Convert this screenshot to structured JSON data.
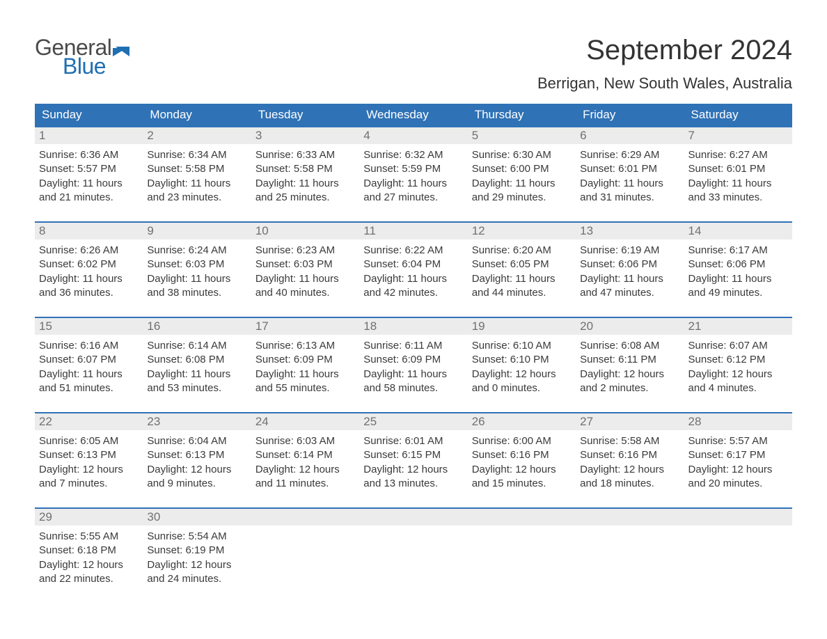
{
  "brand": {
    "line1": "General",
    "line2": "Blue",
    "logo_color": "#1f6fb2",
    "text_color": "#4a4a4a"
  },
  "title": "September 2024",
  "location": "Berrigan, New South Wales, Australia",
  "colors": {
    "header_bg": "#2f72b6",
    "header_text": "#ffffff",
    "week_border": "#2f72b6",
    "daynum_bg": "#ececec",
    "daynum_text": "#707070",
    "body_text": "#3a3a3a",
    "page_bg": "#ffffff"
  },
  "dow": [
    "Sunday",
    "Monday",
    "Tuesday",
    "Wednesday",
    "Thursday",
    "Friday",
    "Saturday"
  ],
  "weeks": [
    [
      {
        "n": "1",
        "sunrise": "6:36 AM",
        "sunset": "5:57 PM",
        "daylight": "11 hours and 21 minutes."
      },
      {
        "n": "2",
        "sunrise": "6:34 AM",
        "sunset": "5:58 PM",
        "daylight": "11 hours and 23 minutes."
      },
      {
        "n": "3",
        "sunrise": "6:33 AM",
        "sunset": "5:58 PM",
        "daylight": "11 hours and 25 minutes."
      },
      {
        "n": "4",
        "sunrise": "6:32 AM",
        "sunset": "5:59 PM",
        "daylight": "11 hours and 27 minutes."
      },
      {
        "n": "5",
        "sunrise": "6:30 AM",
        "sunset": "6:00 PM",
        "daylight": "11 hours and 29 minutes."
      },
      {
        "n": "6",
        "sunrise": "6:29 AM",
        "sunset": "6:01 PM",
        "daylight": "11 hours and 31 minutes."
      },
      {
        "n": "7",
        "sunrise": "6:27 AM",
        "sunset": "6:01 PM",
        "daylight": "11 hours and 33 minutes."
      }
    ],
    [
      {
        "n": "8",
        "sunrise": "6:26 AM",
        "sunset": "6:02 PM",
        "daylight": "11 hours and 36 minutes."
      },
      {
        "n": "9",
        "sunrise": "6:24 AM",
        "sunset": "6:03 PM",
        "daylight": "11 hours and 38 minutes."
      },
      {
        "n": "10",
        "sunrise": "6:23 AM",
        "sunset": "6:03 PM",
        "daylight": "11 hours and 40 minutes."
      },
      {
        "n": "11",
        "sunrise": "6:22 AM",
        "sunset": "6:04 PM",
        "daylight": "11 hours and 42 minutes."
      },
      {
        "n": "12",
        "sunrise": "6:20 AM",
        "sunset": "6:05 PM",
        "daylight": "11 hours and 44 minutes."
      },
      {
        "n": "13",
        "sunrise": "6:19 AM",
        "sunset": "6:06 PM",
        "daylight": "11 hours and 47 minutes."
      },
      {
        "n": "14",
        "sunrise": "6:17 AM",
        "sunset": "6:06 PM",
        "daylight": "11 hours and 49 minutes."
      }
    ],
    [
      {
        "n": "15",
        "sunrise": "6:16 AM",
        "sunset": "6:07 PM",
        "daylight": "11 hours and 51 minutes."
      },
      {
        "n": "16",
        "sunrise": "6:14 AM",
        "sunset": "6:08 PM",
        "daylight": "11 hours and 53 minutes."
      },
      {
        "n": "17",
        "sunrise": "6:13 AM",
        "sunset": "6:09 PM",
        "daylight": "11 hours and 55 minutes."
      },
      {
        "n": "18",
        "sunrise": "6:11 AM",
        "sunset": "6:09 PM",
        "daylight": "11 hours and 58 minutes."
      },
      {
        "n": "19",
        "sunrise": "6:10 AM",
        "sunset": "6:10 PM",
        "daylight": "12 hours and 0 minutes."
      },
      {
        "n": "20",
        "sunrise": "6:08 AM",
        "sunset": "6:11 PM",
        "daylight": "12 hours and 2 minutes."
      },
      {
        "n": "21",
        "sunrise": "6:07 AM",
        "sunset": "6:12 PM",
        "daylight": "12 hours and 4 minutes."
      }
    ],
    [
      {
        "n": "22",
        "sunrise": "6:05 AM",
        "sunset": "6:13 PM",
        "daylight": "12 hours and 7 minutes."
      },
      {
        "n": "23",
        "sunrise": "6:04 AM",
        "sunset": "6:13 PM",
        "daylight": "12 hours and 9 minutes."
      },
      {
        "n": "24",
        "sunrise": "6:03 AM",
        "sunset": "6:14 PM",
        "daylight": "12 hours and 11 minutes."
      },
      {
        "n": "25",
        "sunrise": "6:01 AM",
        "sunset": "6:15 PM",
        "daylight": "12 hours and 13 minutes."
      },
      {
        "n": "26",
        "sunrise": "6:00 AM",
        "sunset": "6:16 PM",
        "daylight": "12 hours and 15 minutes."
      },
      {
        "n": "27",
        "sunrise": "5:58 AM",
        "sunset": "6:16 PM",
        "daylight": "12 hours and 18 minutes."
      },
      {
        "n": "28",
        "sunrise": "5:57 AM",
        "sunset": "6:17 PM",
        "daylight": "12 hours and 20 minutes."
      }
    ],
    [
      {
        "n": "29",
        "sunrise": "5:55 AM",
        "sunset": "6:18 PM",
        "daylight": "12 hours and 22 minutes."
      },
      {
        "n": "30",
        "sunrise": "5:54 AM",
        "sunset": "6:19 PM",
        "daylight": "12 hours and 24 minutes."
      },
      {
        "empty": true
      },
      {
        "empty": true
      },
      {
        "empty": true
      },
      {
        "empty": true
      },
      {
        "empty": true
      }
    ]
  ],
  "labels": {
    "sunrise": "Sunrise: ",
    "sunset": "Sunset: ",
    "daylight": "Daylight: "
  },
  "typography": {
    "title_fontsize": 40,
    "location_fontsize": 22,
    "dow_fontsize": 17,
    "daynum_fontsize": 17,
    "body_fontsize": 15
  }
}
